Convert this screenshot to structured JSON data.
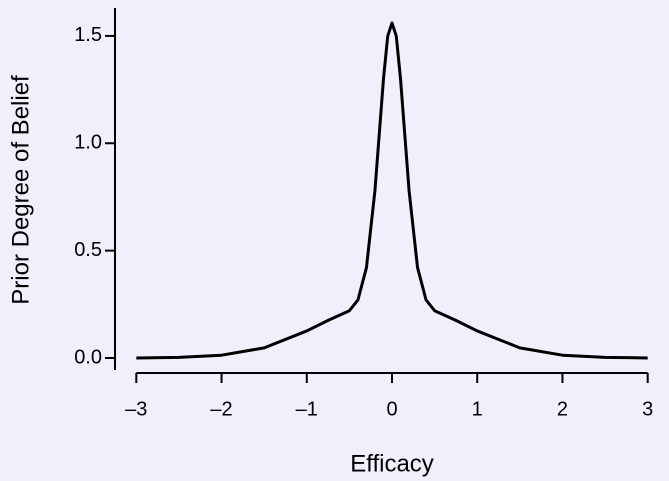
{
  "chart_data": {
    "type": "line",
    "x_label": "Efficacy",
    "y_label": "Prior Degree of Belief",
    "x": [
      -3,
      -2.5,
      -2,
      -1.5,
      -1,
      -0.75,
      -0.5,
      -0.4,
      -0.3,
      -0.2,
      -0.1,
      -0.05,
      0,
      0.05,
      0.1,
      0.2,
      0.3,
      0.4,
      0.5,
      0.75,
      1,
      1.5,
      2,
      2.5,
      3
    ],
    "values": [
      0,
      0.003,
      0.013,
      0.047,
      0.126,
      0.175,
      0.22,
      0.27,
      0.42,
      0.78,
      1.3,
      1.5,
      1.56,
      1.5,
      1.3,
      0.78,
      0.42,
      0.27,
      0.22,
      0.175,
      0.126,
      0.047,
      0.013,
      0.003,
      0
    ],
    "color": "#000000",
    "xlim": [
      -3.25,
      3.25
    ],
    "xticks": [
      {
        "value": -3,
        "label": "–3"
      },
      {
        "value": -2,
        "label": "–2"
      },
      {
        "value": -1,
        "label": "–1"
      },
      0,
      1,
      2,
      3
    ],
    "ylim": [
      -0.056,
      1.63
    ],
    "yticks": [
      {
        "value": 0,
        "label": "0.0"
      },
      0.5,
      {
        "value": 1,
        "label": "1.0"
      },
      {
        "value": 1.5,
        "label": "1.5"
      }
    ]
  }
}
